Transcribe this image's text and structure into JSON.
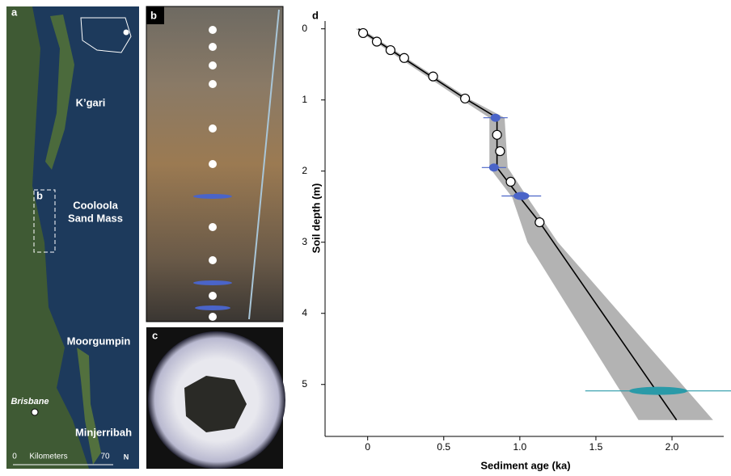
{
  "panels": {
    "a": {
      "label": "a",
      "inset_label": "b",
      "places": [
        "K’gari",
        "Cooloola",
        "Sand Mass",
        "Moorgumpin",
        "Brisbane",
        "Minjerribah"
      ],
      "scale": {
        "title": "Kilometers",
        "start": "0",
        "end": "70"
      },
      "north": "N"
    },
    "b": {
      "label": "b"
    },
    "c": {
      "label": "c"
    }
  },
  "chart_data": {
    "type": "line",
    "label": "d",
    "x_label": "Sediment age (ka)",
    "y_label": "Soil depth (m)",
    "xlim": [
      -0.28,
      2.34
    ],
    "ylim": [
      -0.11,
      5.73
    ],
    "y_inverted": true,
    "xticks": [
      0,
      0.5,
      {
        "value": 1,
        "label": "1.0"
      },
      1.5,
      {
        "value": 2,
        "label": "2.0"
      }
    ],
    "yticks": [
      0,
      1,
      2,
      3,
      4,
      5
    ],
    "band": {
      "color": "#a6a6a6",
      "y": [
        0,
        1,
        1.25,
        1.95,
        2.37,
        3,
        5.5
      ],
      "x_low": [
        -0.08,
        0.62,
        0.8,
        0.8,
        0.95,
        1.05,
        1.78
      ],
      "x_high": [
        -0.04,
        0.68,
        0.9,
        0.92,
        1.05,
        1.25,
        2.27
      ]
    },
    "model": {
      "color": "#000000",
      "x": [
        -0.06,
        0.64,
        0.85,
        0.85,
        1.0,
        1.13,
        2.03
      ],
      "y": [
        0,
        0.98,
        1.25,
        1.95,
        2.37,
        2.72,
        5.5
      ]
    },
    "osl": [
      {
        "color": "#4a64c8",
        "x": [
          0.84,
          0.83,
          1.01
        ],
        "y": [
          1.25,
          1.95,
          2.35
        ],
        "x_err": [
          0.08,
          0.08,
          0.13
        ]
      },
      {
        "color": "#2a9aa8",
        "x": [
          1.91
        ],
        "y": [
          5.09
        ],
        "x_err": [
          0.48
        ]
      }
    ],
    "samples": {
      "color": "#ffffff",
      "x": [
        -0.03,
        0.06,
        0.15,
        0.24,
        0.43,
        0.64,
        0.85,
        0.87,
        0.94,
        1.13
      ],
      "y": [
        0.06,
        0.18,
        0.3,
        0.41,
        0.67,
        0.98,
        1.49,
        1.72,
        2.15,
        2.72
      ]
    }
  }
}
